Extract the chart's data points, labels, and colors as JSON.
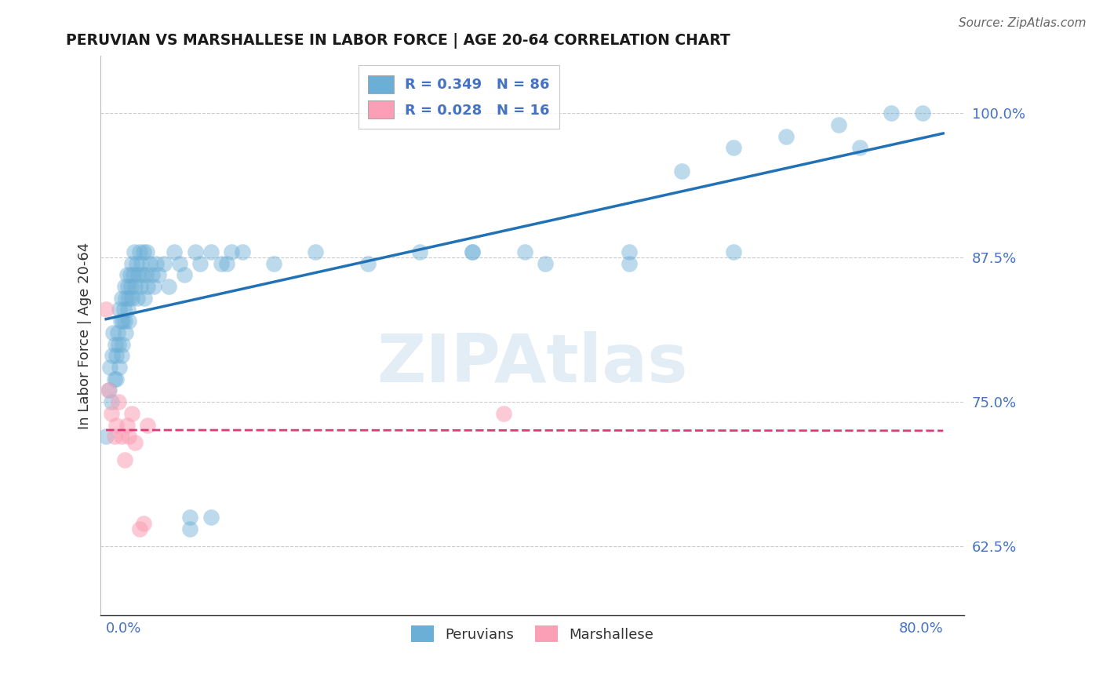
{
  "title": "PERUVIAN VS MARSHALLESE IN LABOR FORCE | AGE 20-64 CORRELATION CHART",
  "source": "Source: ZipAtlas.com",
  "ylabel": "In Labor Force | Age 20-64",
  "yticks": [
    0.625,
    0.75,
    0.875,
    1.0
  ],
  "ytick_labels": [
    "62.5%",
    "75.0%",
    "87.5%",
    "100.0%"
  ],
  "xlim": [
    -0.005,
    0.82
  ],
  "ylim": [
    0.565,
    1.05
  ],
  "peruvian_R": 0.349,
  "peruvian_N": 86,
  "marshallese_R": 0.028,
  "marshallese_N": 16,
  "peruvian_color": "#6baed6",
  "marshallese_color": "#fa9fb5",
  "peruvian_line_color": "#2171b5",
  "marshallese_line_color": "#de3a7a",
  "grid_color": "#cccccc",
  "title_color": "#1a1a1a",
  "source_color": "#666666",
  "axis_label_color": "#4472c4",
  "peru_x": [
    0.0,
    0.003,
    0.004,
    0.005,
    0.006,
    0.007,
    0.008,
    0.009,
    0.01,
    0.01,
    0.011,
    0.012,
    0.013,
    0.013,
    0.014,
    0.015,
    0.015,
    0.016,
    0.016,
    0.017,
    0.018,
    0.018,
    0.019,
    0.019,
    0.02,
    0.021,
    0.021,
    0.022,
    0.022,
    0.023,
    0.024,
    0.025,
    0.025,
    0.026,
    0.027,
    0.028,
    0.029,
    0.03,
    0.031,
    0.032,
    0.033,
    0.034,
    0.035,
    0.036,
    0.037,
    0.038,
    0.039,
    0.04,
    0.042,
    0.044,
    0.046,
    0.048,
    0.05,
    0.055,
    0.06,
    0.065,
    0.07,
    0.075,
    0.08,
    0.085,
    0.09,
    0.1,
    0.115,
    0.13,
    0.16,
    0.2,
    0.25,
    0.3,
    0.35,
    0.42,
    0.5,
    0.55,
    0.6,
    0.65,
    0.7,
    0.72,
    0.75,
    0.78,
    0.08,
    0.1,
    0.11,
    0.12,
    0.35,
    0.4,
    0.5,
    0.6
  ],
  "peru_y": [
    0.72,
    0.76,
    0.78,
    0.75,
    0.79,
    0.81,
    0.77,
    0.8,
    0.79,
    0.77,
    0.81,
    0.8,
    0.78,
    0.83,
    0.82,
    0.84,
    0.79,
    0.82,
    0.8,
    0.83,
    0.85,
    0.82,
    0.84,
    0.81,
    0.86,
    0.83,
    0.85,
    0.84,
    0.82,
    0.86,
    0.85,
    0.87,
    0.84,
    0.86,
    0.88,
    0.85,
    0.87,
    0.84,
    0.86,
    0.88,
    0.85,
    0.87,
    0.86,
    0.88,
    0.84,
    0.86,
    0.88,
    0.85,
    0.87,
    0.86,
    0.85,
    0.87,
    0.86,
    0.87,
    0.85,
    0.88,
    0.87,
    0.86,
    0.65,
    0.88,
    0.87,
    0.88,
    0.87,
    0.88,
    0.87,
    0.88,
    0.87,
    0.88,
    0.88,
    0.87,
    0.88,
    0.95,
    0.97,
    0.98,
    0.99,
    0.97,
    1.0,
    1.0,
    0.64,
    0.65,
    0.87,
    0.88,
    0.88,
    0.88,
    0.87,
    0.88
  ],
  "marsh_x": [
    0.0,
    0.002,
    0.005,
    0.008,
    0.01,
    0.012,
    0.015,
    0.018,
    0.02,
    0.022,
    0.025,
    0.028,
    0.032,
    0.036,
    0.04,
    0.38
  ],
  "marsh_y": [
    0.83,
    0.76,
    0.74,
    0.72,
    0.73,
    0.75,
    0.72,
    0.7,
    0.73,
    0.72,
    0.74,
    0.715,
    0.64,
    0.645,
    0.73,
    0.74
  ]
}
